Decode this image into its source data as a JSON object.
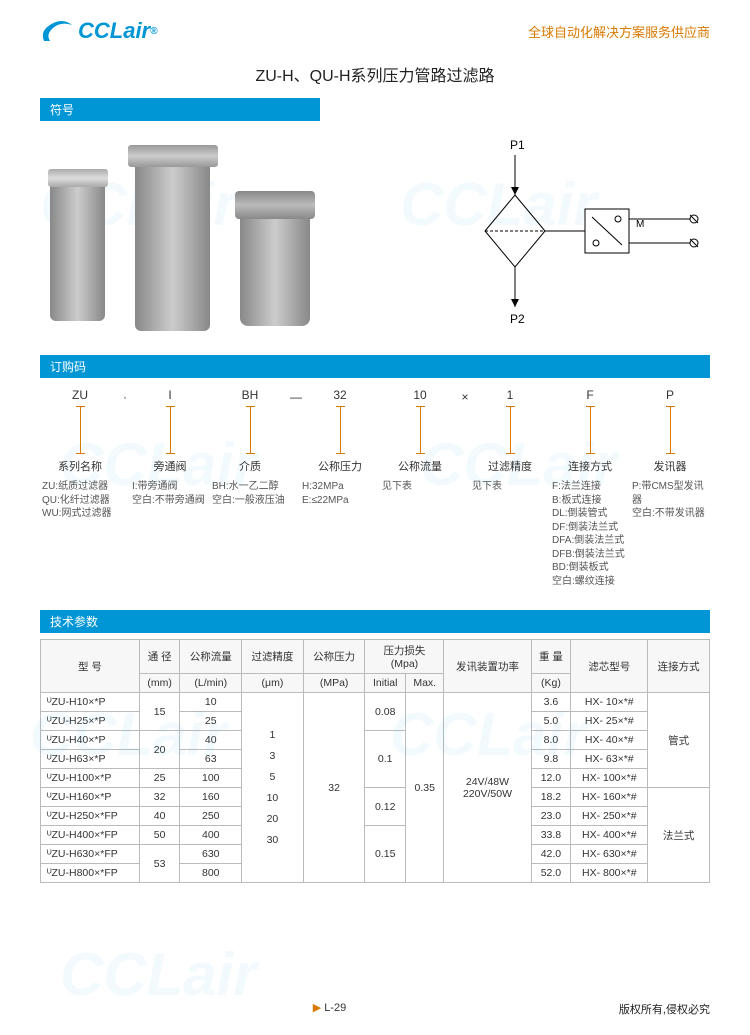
{
  "brand": {
    "name": "CCLair",
    "reg": "®"
  },
  "header_tagline": "全球自动化解决方案服务供应商",
  "title": "ZU-H、QU-H系列压力管路过滤路",
  "sections": {
    "symbol": "符号",
    "order": "订购码",
    "tech": "技术参数"
  },
  "schematic": {
    "p1": "P1",
    "p2": "P2",
    "m": "M"
  },
  "order": {
    "cols": [
      {
        "val": "ZU",
        "label": "系列名称",
        "desc": [
          "ZU:纸质过滤器",
          "QU:化纤过滤器",
          "WU:网式过滤器"
        ]
      },
      {
        "val": "I",
        "label": "旁通阀",
        "desc": [
          "I:带旁通阀",
          "空白:不带旁通阀"
        ]
      },
      {
        "val": "BH",
        "label": "介质",
        "desc": [
          "BH:水一乙二醇",
          "空白:一般液压油"
        ]
      },
      {
        "val": "32",
        "label": "公称压力",
        "desc": [
          "H:32MPa",
          "E:≤22MPa"
        ]
      },
      {
        "val": "10",
        "label": "公称流量",
        "desc": [
          "见下表"
        ]
      },
      {
        "val": "1",
        "label": "过滤精度",
        "desc": [
          "见下表"
        ]
      },
      {
        "val": "F",
        "label": "连接方式",
        "desc": [
          "F:法兰连接",
          "B:板式连接",
          "DL:倒装管式",
          "DF:倒装法兰式",
          "DFA:倒装法兰式",
          "DFB:倒装法兰式",
          "BD:倒装板式",
          "空白:螺纹连接"
        ]
      },
      {
        "val": "P",
        "label": "发讯器",
        "desc": [
          "P:带CMS型发讯器",
          "空白:不带发讯器"
        ]
      }
    ],
    "seps": [
      "",
      "·",
      "",
      "—",
      "",
      "×",
      "",
      "",
      "",
      "",
      ""
    ]
  },
  "tech_head": {
    "model": "型 号",
    "dia": "通 径",
    "dia_u": "(mm)",
    "flow": "公称流量",
    "flow_u": "(L/min)",
    "prec": "过滤精度",
    "prec_u": "(μm)",
    "press": "公称压力",
    "press_u": "(MPa)",
    "loss": "压力损失",
    "loss_u": "(Mpa)",
    "loss_i": "Initial",
    "loss_m": "Max.",
    "power": "发讯装置功率",
    "weight": "重 量",
    "weight_u": "(Kg)",
    "elem": "滤芯型号",
    "conn": "连接方式"
  },
  "tech_rows": [
    {
      "model": "ᵁZU-H10×*P",
      "dia": "15",
      "flow": "10",
      "init": "0.08",
      "wt": "3.6",
      "elem": "HX- 10×*#"
    },
    {
      "model": "ᵁZU-H25×*P",
      "dia": "",
      "flow": "25",
      "init": "",
      "wt": "5.0",
      "elem": "HX- 25×*#"
    },
    {
      "model": "ᵁZU-H40×*P",
      "dia": "20",
      "flow": "40",
      "init": "0.1",
      "wt": "8.0",
      "elem": "HX- 40×*#"
    },
    {
      "model": "ᵁZU-H63×*P",
      "dia": "",
      "flow": "63",
      "init": "",
      "wt": "9.8",
      "elem": "HX- 63×*#"
    },
    {
      "model": "ᵁZU-H100×*P",
      "dia": "25",
      "flow": "100",
      "init": "",
      "wt": "12.0",
      "elem": "HX- 100×*#"
    },
    {
      "model": "ᵁZU-H160×*P",
      "dia": "32",
      "flow": "160",
      "init": "0.12",
      "wt": "18.2",
      "elem": "HX- 160×*#"
    },
    {
      "model": "ᵁZU-H250×*FP",
      "dia": "40",
      "flow": "250",
      "init": "",
      "wt": "23.0",
      "elem": "HX- 250×*#"
    },
    {
      "model": "ᵁZU-H400×*FP",
      "dia": "50",
      "flow": "400",
      "init": "0.15",
      "wt": "33.8",
      "elem": "HX- 400×*#"
    },
    {
      "model": "ᵁZU-H630×*FP",
      "dia": "53",
      "flow": "630",
      "init": "",
      "wt": "42.0",
      "elem": "HX- 630×*#"
    },
    {
      "model": "ᵁZU-H800×*FP",
      "dia": "",
      "flow": "800",
      "init": "",
      "wt": "52.0",
      "elem": "HX- 800×*#"
    }
  ],
  "tech_common": {
    "prec": [
      "1",
      "3",
      "5",
      "10",
      "20",
      "30"
    ],
    "press": "32",
    "max": "0.35",
    "power": [
      "24V/48W",
      "220V/50W"
    ],
    "conn": [
      "管式",
      "法兰式"
    ]
  },
  "footer": {
    "page": "L-29",
    "copy": "版权所有,侵权必究"
  },
  "colors": {
    "primary": "#0096d6",
    "accent": "#d97900",
    "border": "#bbbbbb",
    "bg": "#ffffff"
  }
}
